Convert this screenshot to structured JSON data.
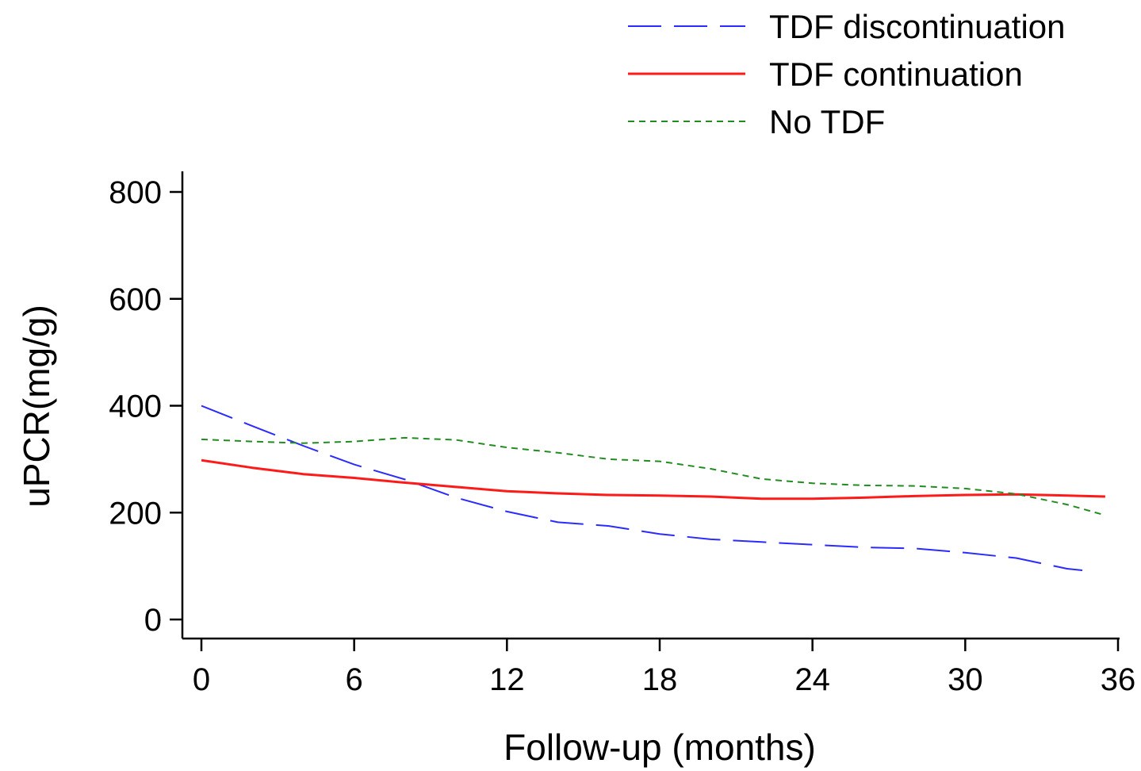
{
  "chart_data": {
    "type": "line",
    "title": "",
    "xlabel": "Follow-up (months)",
    "ylabel": "uPCR(mg/g)",
    "xlim": [
      0,
      36
    ],
    "ylim": [
      0,
      800
    ],
    "xticks": [
      0,
      6,
      12,
      18,
      24,
      30,
      36
    ],
    "yticks": [
      0,
      200,
      400,
      600,
      800
    ],
    "grid": false,
    "legend_position": "top-right",
    "series": [
      {
        "name": "TDF discontinuation",
        "color": "#2b2bff",
        "dash": "long-dash",
        "x": [
          0,
          2,
          4,
          6,
          8,
          10,
          12,
          14,
          16,
          18,
          20,
          22,
          24,
          26,
          28,
          30,
          32,
          34,
          34.6
        ],
        "y": [
          400,
          362,
          325,
          290,
          262,
          228,
          202,
          182,
          175,
          160,
          150,
          145,
          140,
          135,
          133,
          125,
          115,
          95,
          92
        ]
      },
      {
        "name": "TDF continuation",
        "color": "#ff1a1a",
        "dash": "solid",
        "x": [
          0,
          2,
          4,
          6,
          8,
          10,
          12,
          14,
          16,
          18,
          20,
          22,
          24,
          26,
          28,
          30,
          32,
          34,
          35.5
        ],
        "y": [
          298,
          284,
          272,
          265,
          256,
          248,
          240,
          236,
          233,
          232,
          230,
          226,
          226,
          228,
          231,
          233,
          234,
          232,
          230
        ]
      },
      {
        "name": "No TDF",
        "color": "#228b22",
        "dash": "short-dash",
        "x": [
          0,
          2,
          4,
          6,
          8,
          10,
          12,
          14,
          16,
          18,
          20,
          22,
          24,
          26,
          28,
          30,
          32,
          34,
          35.5
        ],
        "y": [
          337,
          333,
          330,
          333,
          340,
          336,
          322,
          312,
          300,
          296,
          282,
          263,
          255,
          251,
          250,
          245,
          235,
          215,
          195
        ]
      }
    ]
  }
}
